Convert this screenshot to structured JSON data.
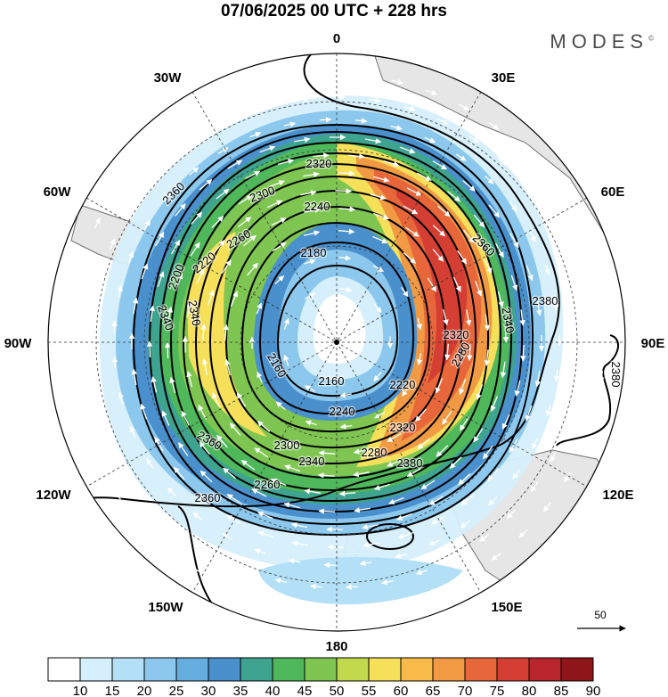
{
  "header": {
    "title": "07/06/2025  00 UTC  + 228 hrs",
    "brand": "MODES",
    "brand_mark": "©"
  },
  "longitude_labels": [
    "0",
    "30E",
    "60E",
    "90E",
    "120E",
    "150E",
    "180",
    "150W",
    "120W",
    "90W",
    "60W",
    "30W"
  ],
  "contour_labels": [
    "2360",
    "2320",
    "2300",
    "2240",
    "2260",
    "2180",
    "2220",
    "2320",
    "2200",
    "2340",
    "2380",
    "2360",
    "2340",
    "2340",
    "2280",
    "2160",
    "2220",
    "2280",
    "2160",
    "2240",
    "2320",
    "2300",
    "2340",
    "2380",
    "2360",
    "2260",
    "2360",
    "2380"
  ],
  "wind_reference": {
    "label": "50"
  },
  "colorbar": {
    "ticks": [
      "10",
      "15",
      "20",
      "25",
      "30",
      "35",
      "40",
      "45",
      "50",
      "55",
      "60",
      "65",
      "70",
      "75",
      "80",
      "85",
      "90"
    ],
    "colors": [
      "#ffffff",
      "#d6effc",
      "#b3e0f7",
      "#8cc8ee",
      "#67aee0",
      "#4a90cc",
      "#3ea38f",
      "#4eb85a",
      "#7ec651",
      "#c2d94e",
      "#f6e05a",
      "#f8bb4a",
      "#f19a43",
      "#e8673a",
      "#d53f33",
      "#b8252c",
      "#8e1519"
    ]
  },
  "map_colors": {
    "land": "#e6e6e6",
    "coast": "#707070",
    "contour": "#000000",
    "arrows": "#ffffff"
  }
}
